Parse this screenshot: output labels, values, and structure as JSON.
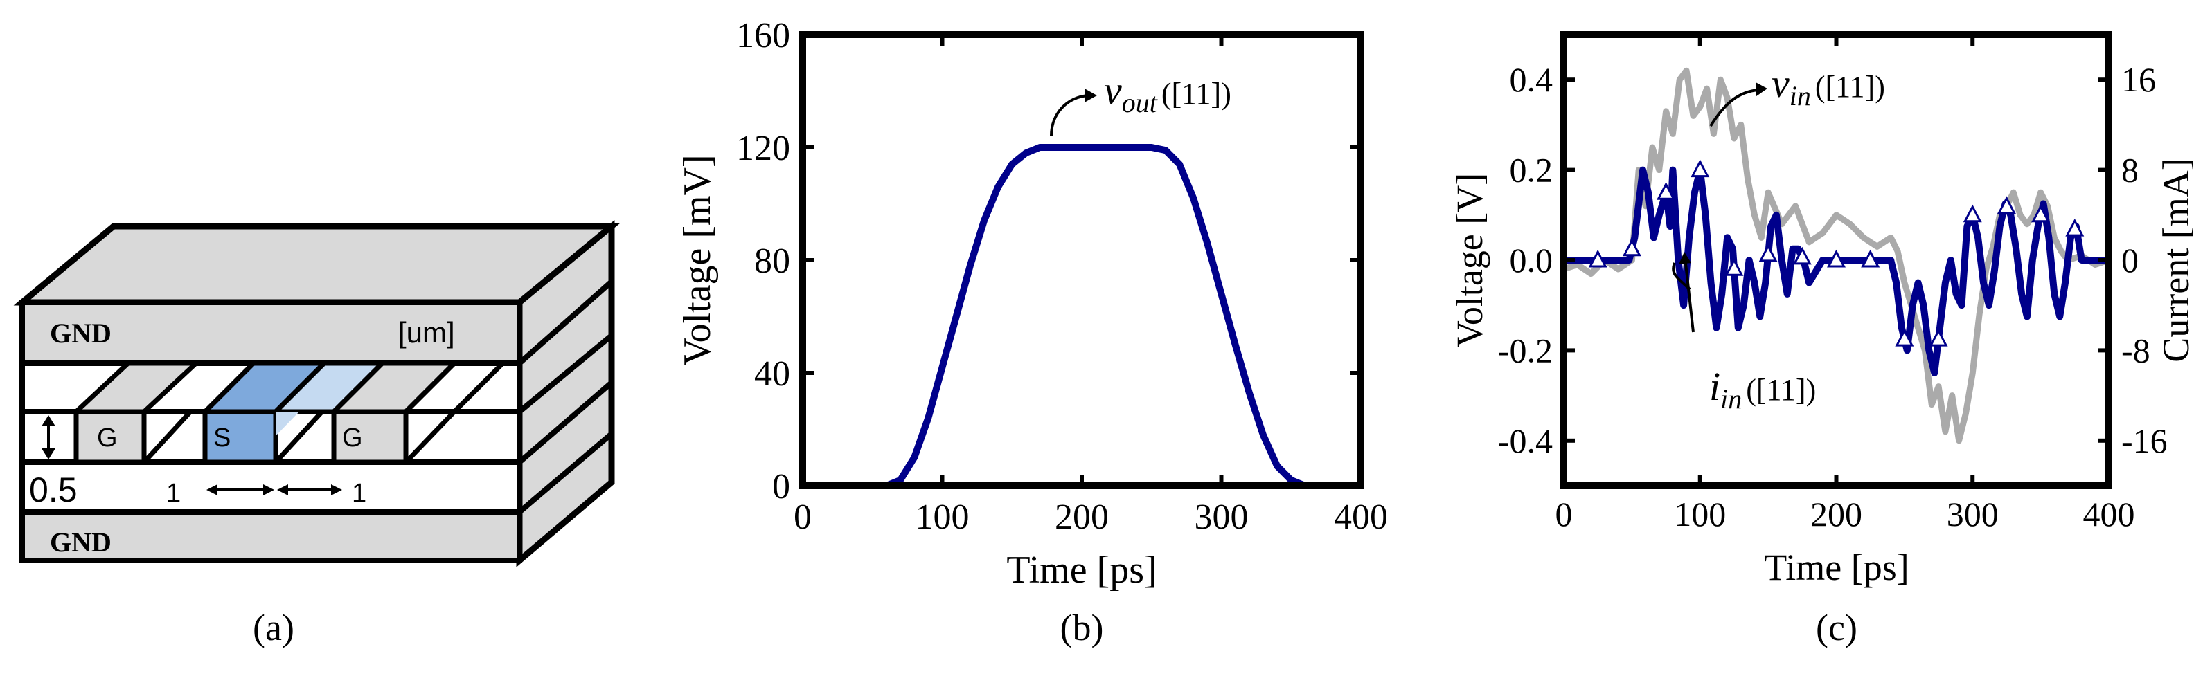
{
  "panel_a": {
    "caption": "(a)",
    "top_gnd": "GND",
    "bottom_gnd": "GND",
    "unit": "[um]",
    "conductor_left": "G",
    "conductor_mid": "S",
    "conductor_right": "G",
    "thickness_label": "0.5",
    "spacing_left": "1",
    "spacing_right": "1",
    "colors": {
      "box": "#d9d9d9",
      "signal": "#7ea9dc",
      "signal_light": "#c5daf1"
    }
  },
  "chart_data": [
    {
      "panel": "b",
      "type": "line",
      "caption": "(b)",
      "xlabel": "Time [ps]",
      "ylabel": "Voltage [mV]",
      "xlim": [
        0,
        400
      ],
      "ylim": [
        0,
        160
      ],
      "xticks": [
        "0",
        "100",
        "200",
        "300",
        "400"
      ],
      "yticks": [
        "0",
        "40",
        "80",
        "120",
        "160"
      ],
      "series": [
        {
          "label_main": "v",
          "label_sub": "out",
          "label_ref": "([11])",
          "color": "#00008b",
          "x": [
            0,
            60,
            70,
            80,
            90,
            100,
            110,
            120,
            130,
            140,
            150,
            160,
            170,
            180,
            200,
            220,
            240,
            250,
            260,
            270,
            280,
            290,
            300,
            310,
            320,
            330,
            340,
            350,
            360,
            370,
            400
          ],
          "y": [
            0,
            0,
            2,
            10,
            24,
            42,
            60,
            78,
            94,
            106,
            114,
            118,
            120,
            120,
            120,
            120,
            120,
            120,
            119,
            114,
            102,
            86,
            68,
            50,
            33,
            18,
            7,
            2,
            0,
            0,
            0
          ]
        }
      ]
    },
    {
      "panel": "c",
      "type": "line",
      "caption": "(c)",
      "xlabel": "Time [ps]",
      "ylabel": "Voltage [V]",
      "y2label": "Current [mA]",
      "xlim": [
        0,
        400
      ],
      "ylim": [
        -0.5,
        0.5
      ],
      "y2lim": [
        -20,
        20
      ],
      "xticks": [
        "0",
        "100",
        "200",
        "300",
        "400"
      ],
      "yticks": [
        "-0.4",
        "-0.2",
        "0.0",
        "0.2",
        "0.4"
      ],
      "y2ticks": [
        "-16",
        "-8",
        "0",
        "8",
        "16"
      ],
      "series": [
        {
          "label_main": "v",
          "label_sub": "in",
          "label_ref": "([11])",
          "color": "#aaaaaa",
          "axis": "left",
          "x": [
            0,
            10,
            20,
            30,
            40,
            50,
            55,
            60,
            65,
            70,
            75,
            80,
            85,
            90,
            95,
            100,
            105,
            110,
            115,
            120,
            125,
            130,
            135,
            140,
            145,
            150,
            160,
            170,
            180,
            190,
            200,
            210,
            220,
            230,
            240,
            245,
            250,
            255,
            260,
            265,
            270,
            275,
            280,
            285,
            290,
            295,
            300,
            305,
            310,
            315,
            320,
            325,
            330,
            335,
            340,
            345,
            350,
            355,
            360,
            365,
            370,
            380,
            390,
            400
          ],
          "y": [
            -0.02,
            -0.01,
            -0.03,
            0.0,
            -0.02,
            0.0,
            0.2,
            0.12,
            0.25,
            0.2,
            0.33,
            0.28,
            0.4,
            0.42,
            0.32,
            0.34,
            0.38,
            0.28,
            0.4,
            0.36,
            0.27,
            0.3,
            0.18,
            0.1,
            0.05,
            0.15,
            0.08,
            0.12,
            0.04,
            0.06,
            0.1,
            0.08,
            0.05,
            0.03,
            0.05,
            0.02,
            -0.05,
            -0.1,
            -0.15,
            -0.2,
            -0.32,
            -0.28,
            -0.38,
            -0.3,
            -0.4,
            -0.34,
            -0.25,
            -0.12,
            -0.02,
            0.03,
            0.1,
            0.12,
            0.15,
            0.1,
            0.08,
            0.1,
            0.15,
            0.12,
            0.05,
            0.02,
            0.0,
            0.01,
            -0.01,
            0.0
          ]
        },
        {
          "label_main": "i",
          "label_sub": "in",
          "label_ref": "([11])",
          "color": "#00008b",
          "axis": "right",
          "markers_x": [
            25,
            50,
            75,
            100,
            125,
            150,
            175,
            200,
            225,
            250,
            275,
            300,
            325,
            350,
            375
          ],
          "x": [
            0,
            20,
            30,
            40,
            48,
            52,
            55,
            58,
            62,
            66,
            70,
            75,
            78,
            80,
            84,
            88,
            92,
            96,
            100,
            104,
            108,
            112,
            116,
            120,
            124,
            128,
            132,
            136,
            140,
            144,
            148,
            152,
            156,
            160,
            164,
            168,
            172,
            176,
            180,
            190,
            200,
            210,
            220,
            230,
            240,
            244,
            248,
            252,
            256,
            260,
            264,
            268,
            272,
            276,
            280,
            284,
            288,
            292,
            296,
            300,
            304,
            308,
            312,
            316,
            320,
            324,
            328,
            332,
            336,
            340,
            344,
            348,
            352,
            356,
            360,
            364,
            368,
            372,
            376,
            380,
            400
          ],
          "y": [
            0,
            0,
            0,
            0,
            0,
            2,
            5,
            8,
            6,
            2,
            4,
            6,
            3,
            8,
            0,
            -4,
            2,
            6,
            8,
            4,
            -2,
            -6,
            -3,
            2,
            1,
            -6,
            -4,
            0,
            -2,
            -5,
            -2,
            3,
            4,
            0,
            -3,
            1,
            1,
            0,
            -2,
            0,
            0,
            0,
            0,
            0,
            0,
            -2,
            -6,
            -8,
            -4,
            -2,
            -4,
            -8,
            -10,
            -6,
            -2,
            0,
            -3,
            -4,
            3,
            4,
            2,
            -2,
            -4,
            -1,
            3,
            5,
            4,
            1,
            -3,
            -5,
            0,
            3,
            5,
            2,
            -3,
            -5,
            -2,
            2,
            3,
            0,
            0
          ]
        }
      ]
    }
  ]
}
